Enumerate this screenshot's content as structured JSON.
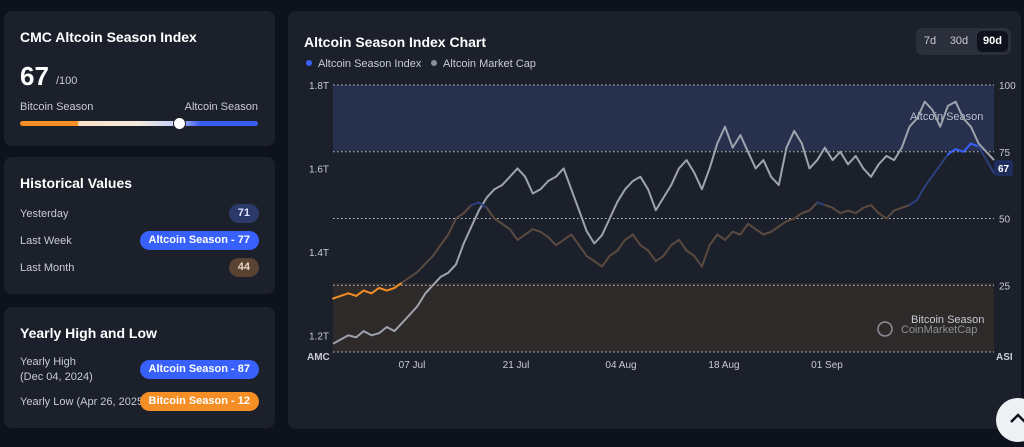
{
  "index_card": {
    "title": "CMC Altcoin Season Index",
    "value": "67",
    "max": "/100",
    "left_label": "Bitcoin Season",
    "right_label": "Altcoin Season",
    "gauge_value_fraction": 0.67
  },
  "historical": {
    "title": "Historical Values",
    "rows": [
      {
        "label": "Yesterday",
        "value": "71"
      },
      {
        "label": "Last Week",
        "value": "Altcoin Season - 77"
      },
      {
        "label": "Last Month",
        "value": "44"
      }
    ]
  },
  "yearly": {
    "title": "Yearly High and Low",
    "high_label": "Yearly High",
    "high_date": "(Dec 04, 2024)",
    "high_value": "Altcoin Season - 87",
    "low_label": "Yearly Low (Apr 26, 2025)",
    "low_value": "Bitcoin Season - 12"
  },
  "chart_panel": {
    "title": "Altcoin Season Index Chart",
    "tabs": [
      "7d",
      "30d",
      "90d"
    ],
    "active_tab": "90d",
    "legend": [
      {
        "name": "Altcoin Season Index",
        "color": "#3861fb"
      },
      {
        "name": "Altcoin Market Cap",
        "color": "#8b8f98"
      }
    ],
    "zone_labels": {
      "top": "Altcoin Season",
      "bottom": "Bitcoin Season"
    },
    "left_axis_title": "AMC",
    "right_axis_title": "ASI",
    "current_badge": "67",
    "watermark": "CoinMarketCap"
  },
  "chart_data": {
    "type": "line",
    "x_ticks": [
      "07 Jul",
      "21 Jul",
      "04 Aug",
      "18 Aug",
      "01 Sep"
    ],
    "left_axis": {
      "ticks": [
        "1.2T",
        "1.4T",
        "1.6T",
        "1.8T"
      ],
      "range": [
        1.16,
        1.8
      ]
    },
    "right_axis": {
      "ticks": [
        "25",
        "50",
        "75",
        "100"
      ],
      "range": [
        0,
        100
      ]
    },
    "series": [
      {
        "name": "Altcoin Market Cap",
        "axis": "left",
        "values": [
          1.18,
          1.19,
          1.2,
          1.195,
          1.21,
          1.2,
          1.205,
          1.22,
          1.21,
          1.23,
          1.25,
          1.27,
          1.3,
          1.32,
          1.34,
          1.35,
          1.37,
          1.42,
          1.46,
          1.5,
          1.53,
          1.55,
          1.56,
          1.58,
          1.6,
          1.58,
          1.54,
          1.55,
          1.57,
          1.58,
          1.6,
          1.55,
          1.5,
          1.45,
          1.42,
          1.44,
          1.48,
          1.52,
          1.55,
          1.57,
          1.58,
          1.55,
          1.5,
          1.53,
          1.56,
          1.6,
          1.62,
          1.59,
          1.55,
          1.6,
          1.66,
          1.7,
          1.65,
          1.68,
          1.64,
          1.6,
          1.62,
          1.58,
          1.56,
          1.65,
          1.69,
          1.66,
          1.6,
          1.62,
          1.65,
          1.62,
          1.64,
          1.61,
          1.63,
          1.6,
          1.58,
          1.61,
          1.63,
          1.62,
          1.65,
          1.7,
          1.72,
          1.76,
          1.74,
          1.7,
          1.75,
          1.76,
          1.72,
          1.7,
          1.66,
          1.64,
          1.62
        ]
      },
      {
        "name": "Altcoin Season Index",
        "axis": "right",
        "values": [
          20,
          21,
          22,
          21,
          23,
          22,
          24,
          23,
          24,
          26,
          28,
          30,
          33,
          36,
          40,
          44,
          50,
          52,
          55,
          56,
          54,
          50,
          48,
          46,
          42,
          44,
          46,
          45,
          43,
          40,
          42,
          44,
          40,
          36,
          34,
          32,
          36,
          38,
          42,
          44,
          40,
          38,
          34,
          36,
          40,
          42,
          38,
          36,
          32,
          40,
          44,
          42,
          45,
          44,
          48,
          46,
          44,
          45,
          47,
          49,
          50,
          52,
          53,
          56,
          55,
          54,
          52,
          53,
          52,
          54,
          55,
          52,
          50,
          53,
          54,
          55,
          57,
          62,
          66,
          70,
          74,
          76,
          75,
          78,
          77,
          72,
          67
        ]
      }
    ]
  }
}
